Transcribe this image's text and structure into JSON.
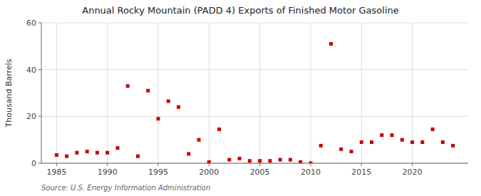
{
  "chart_data": {
    "type": "scatter",
    "title": "Annual Rocky Mountain (PADD 4) Exports of Finished Motor Gasoline",
    "y_label": "Thousand Barrels",
    "annotations": [
      "Source: U.S. Energy Information Administration"
    ],
    "x": [
      1985,
      1986,
      1987,
      1988,
      1989,
      1990,
      1991,
      1992,
      1993,
      1994,
      1995,
      1996,
      1997,
      1998,
      1999,
      2000,
      2001,
      2002,
      2003,
      2004,
      2005,
      2006,
      2007,
      2008,
      2009,
      2010,
      2011,
      2012,
      2013,
      2014,
      2015,
      2016,
      2017,
      2018,
      2019,
      2020,
      2021,
      2022,
      2023,
      2024
    ],
    "values": [
      3.5,
      3.0,
      4.5,
      5.0,
      4.5,
      4.5,
      6.5,
      33.0,
      3.0,
      31.0,
      19.0,
      26.5,
      24.0,
      4.0,
      10.0,
      0.5,
      14.5,
      1.5,
      2.0,
      1.0,
      1.0,
      1.0,
      1.5,
      1.5,
      0.5,
      0.0,
      7.5,
      51.0,
      6.0,
      5.0,
      9.0,
      9.0,
      12.0,
      12.0,
      10.0,
      9.0,
      9.0,
      14.5,
      9.0,
      7.5
    ],
    "color": "#cc0000",
    "marker": "square",
    "xlim": [
      1983.5,
      2025.5
    ],
    "ylim": [
      0,
      60
    ],
    "xticks": [
      1985,
      1990,
      1995,
      2000,
      2005,
      2010,
      2015,
      2020
    ],
    "yticks": [
      0,
      20,
      40,
      60
    ],
    "grid": true
  }
}
